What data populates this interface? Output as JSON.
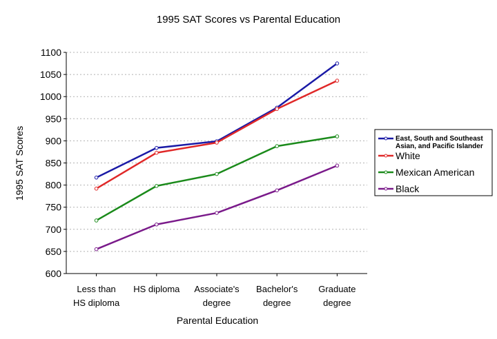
{
  "chart_data": {
    "type": "line",
    "title": "1995 SAT Scores vs Parental Education",
    "xlabel": "Parental Education",
    "ylabel": "1995 SAT Scores",
    "ylim": [
      600,
      1100
    ],
    "yticks": [
      600,
      650,
      700,
      750,
      800,
      850,
      900,
      950,
      1000,
      1050,
      1100
    ],
    "grid": true,
    "legend_position": "right",
    "categories": [
      [
        "Less than",
        "HS diploma"
      ],
      [
        "HS diploma"
      ],
      [
        "Associate's",
        "degree"
      ],
      [
        "Bachelor's",
        "degree"
      ],
      [
        "Graduate",
        "degree"
      ]
    ],
    "series": [
      {
        "name": "East, South and Southeast Asian, and Pacific Islander",
        "legend_lines": [
          "East, South and Southeast",
          "Asian, and Pacific Islander"
        ],
        "color": "#1a1aa6",
        "values": [
          817,
          884,
          899,
          975,
          1075
        ]
      },
      {
        "name": "White",
        "legend_lines": [
          "White"
        ],
        "color": "#e02828",
        "values": [
          792,
          873,
          896,
          972,
          1036
        ]
      },
      {
        "name": "Mexican American",
        "legend_lines": [
          "Mexican American"
        ],
        "color": "#1a8a1a",
        "values": [
          720,
          798,
          825,
          888,
          910
        ]
      },
      {
        "name": "Black",
        "legend_lines": [
          "Black"
        ],
        "color": "#7a1a8a",
        "values": [
          655,
          711,
          737,
          788,
          844
        ]
      }
    ]
  }
}
